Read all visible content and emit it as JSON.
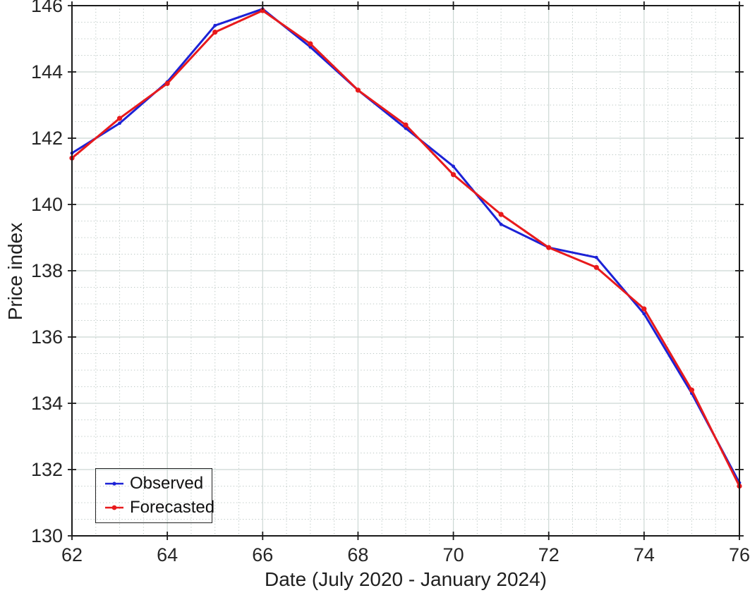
{
  "chart_data": {
    "type": "line",
    "title": "",
    "xlabel": "Date (July 2020 - January 2024)",
    "ylabel": "Price index",
    "xlim": [
      62,
      76
    ],
    "ylim": [
      130,
      146
    ],
    "xticks": [
      62,
      64,
      66,
      68,
      70,
      72,
      74,
      76
    ],
    "yticks": [
      130,
      132,
      134,
      136,
      138,
      140,
      142,
      144,
      146
    ],
    "minor_grid_step": 0.5,
    "grid": "on",
    "minor_grid": "on",
    "legend_position": "bottom-left",
    "x": [
      62,
      63,
      64,
      65,
      66,
      67,
      68,
      69,
      70,
      71,
      72,
      73,
      74,
      75,
      76
    ],
    "series": [
      {
        "name": "Observed",
        "color": "#1c22d6",
        "marker": "dot",
        "marker_radius": 2.4,
        "values": [
          141.55,
          142.45,
          143.7,
          145.4,
          145.9,
          144.75,
          143.45,
          142.3,
          141.15,
          139.4,
          138.7,
          138.4,
          136.7,
          134.3,
          131.6
        ]
      },
      {
        "name": "Forecasted",
        "color": "#e81a1c",
        "marker": "dot",
        "marker_radius": 3.6,
        "values": [
          141.4,
          142.6,
          143.65,
          145.2,
          145.85,
          144.85,
          143.45,
          142.4,
          140.9,
          139.7,
          138.7,
          138.1,
          136.85,
          134.4,
          131.5
        ]
      }
    ],
    "colors": {
      "axis": "#1a1a1a",
      "tick_label": "#262626",
      "major_grid": "#ccd8d4",
      "minor_grid": "#bcc8c4"
    }
  }
}
